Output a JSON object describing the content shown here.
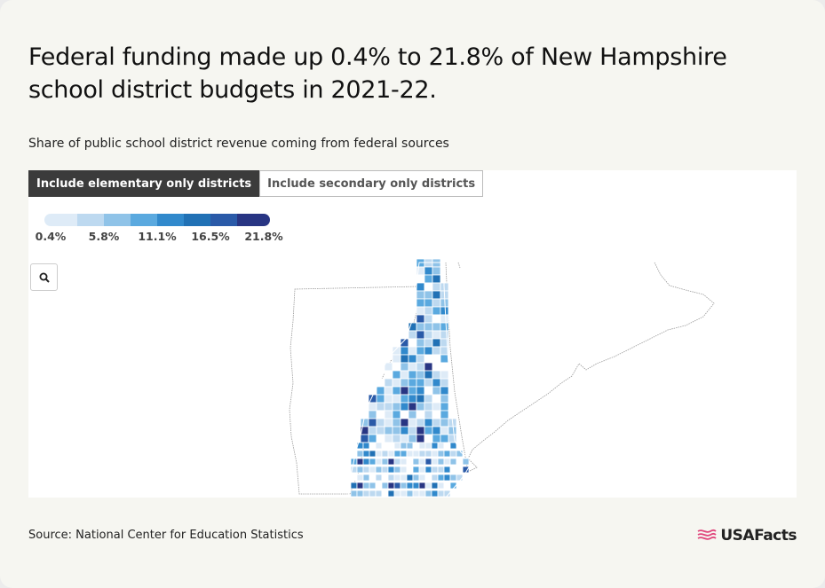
{
  "title": "Federal funding made up 0.4% to 21.8% of New Hampshire school district budgets in 2021-22.",
  "subtitle": "Share of public school district revenue coming from federal sources",
  "tabs": [
    {
      "label": "Include elementary only districts",
      "active": true
    },
    {
      "label": "Include secondary only districts",
      "active": false
    }
  ],
  "legend": {
    "labels": [
      "0.4%",
      "5.8%",
      "11.1%",
      "16.5%",
      "21.8%"
    ],
    "colors": [
      "#deebf7",
      "#bdd9f0",
      "#8fc3e8",
      "#5aa9df",
      "#3189cc",
      "#2171b5",
      "#2a5aa8",
      "#283583"
    ]
  },
  "zoom_button": {
    "icon": "search-icon"
  },
  "source": "Source: National Center for Education Statistics",
  "logo": {
    "text": "USAFacts",
    "icon": "flag-icon"
  },
  "chart_data": {
    "type": "choropleth",
    "region": "New Hampshire school districts",
    "measure": "Share of public school district revenue from federal sources",
    "range": [
      0.4,
      21.8
    ],
    "unit": "%"
  }
}
